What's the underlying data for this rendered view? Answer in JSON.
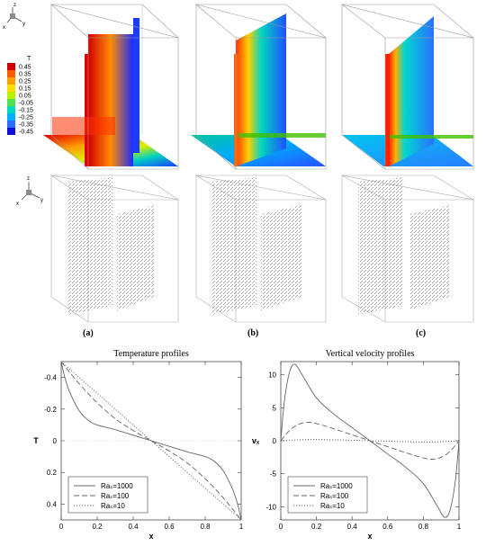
{
  "figure": {
    "panel_labels": [
      "(a)",
      "(b)",
      "(c)"
    ],
    "triad_top": {
      "z": "z",
      "y": "y",
      "x": "x"
    },
    "triad_mid": {
      "z": "z",
      "y": "y",
      "x": "x"
    },
    "colorbar": {
      "title": "T",
      "ticks": [
        "0.45",
        "0.35",
        "0.25",
        "0.15",
        "0.05",
        "-0.05",
        "-0.15",
        "-0.25",
        "-0.35",
        "-0.45"
      ],
      "colors": [
        "#d00000",
        "#ff5a00",
        "#ffa000",
        "#ffe000",
        "#b8f000",
        "#50e050",
        "#00d8c0",
        "#00b0ff",
        "#2a6dff",
        "#1010d8"
      ]
    }
  },
  "chart_data": [
    {
      "type": "line",
      "title": "Temperature profiles",
      "xlabel": "x",
      "ylabel": "T",
      "xlim": [
        0,
        1
      ],
      "ylim": [
        0.5,
        -0.5
      ],
      "xticks": [
        "0",
        "0.2",
        "0.4",
        "0.6",
        "0.8",
        "1"
      ],
      "yticks": [
        "-0.4",
        "-0.2",
        "0",
        "0.2",
        "0.4"
      ],
      "legend": {
        "placement": "bottom-left",
        "entries": [
          "Raₛ=1000",
          "Raₛ=100",
          "Raₛ=10"
        ]
      },
      "series": [
        {
          "name": "Raₛ=1000",
          "style": "solid",
          "x": [
            0,
            0.02,
            0.05,
            0.1,
            0.15,
            0.2,
            0.3,
            0.4,
            0.5,
            0.6,
            0.7,
            0.8,
            0.85,
            0.9,
            0.95,
            0.98,
            1
          ],
          "y": [
            -0.5,
            -0.4,
            -0.3,
            -0.19,
            -0.13,
            -0.1,
            -0.07,
            -0.035,
            0,
            0.035,
            0.07,
            0.1,
            0.13,
            0.19,
            0.3,
            0.4,
            0.5
          ]
        },
        {
          "name": "Raₛ=100",
          "style": "dashed",
          "x": [
            0,
            0.1,
            0.2,
            0.3,
            0.4,
            0.5,
            0.6,
            0.7,
            0.8,
            0.9,
            1
          ],
          "y": [
            -0.5,
            -0.36,
            -0.24,
            -0.14,
            -0.065,
            0,
            0.065,
            0.14,
            0.24,
            0.36,
            0.5
          ]
        },
        {
          "name": "Raₛ=10",
          "style": "dotted",
          "x": [
            0,
            0.1,
            0.2,
            0.3,
            0.4,
            0.5,
            0.6,
            0.7,
            0.8,
            0.9,
            1
          ],
          "y": [
            -0.5,
            -0.4,
            -0.3,
            -0.2,
            -0.1,
            0,
            0.1,
            0.2,
            0.3,
            0.4,
            0.5
          ]
        }
      ]
    },
    {
      "type": "line",
      "title": "Vertical velocity profiles",
      "xlabel": "x",
      "ylabel": "vₓ",
      "xlim": [
        0,
        1
      ],
      "ylim": [
        -12,
        12
      ],
      "xticks": [
        "0",
        "0.2",
        "0.4",
        "0.6",
        "0.8",
        "1"
      ],
      "yticks": [
        "10",
        "5",
        "0",
        "-5",
        "-10"
      ],
      "legend": {
        "placement": "bottom-left",
        "entries": [
          "Raₛ=1000",
          "Raₛ=100",
          "Raₛ=10"
        ]
      },
      "series": [
        {
          "name": "Raₛ=1000",
          "style": "solid",
          "x": [
            0,
            0.02,
            0.05,
            0.08,
            0.12,
            0.2,
            0.3,
            0.4,
            0.5,
            0.6,
            0.7,
            0.8,
            0.88,
            0.92,
            0.95,
            0.98,
            1
          ],
          "y": [
            0,
            6,
            10.5,
            11.6,
            10.0,
            6.5,
            4.0,
            2.0,
            0,
            -2.0,
            -4.0,
            -6.5,
            -10.0,
            -11.6,
            -10.5,
            -6,
            0
          ]
        },
        {
          "name": "Raₛ=100",
          "style": "dashed",
          "x": [
            0,
            0.05,
            0.1,
            0.15,
            0.2,
            0.3,
            0.4,
            0.5,
            0.6,
            0.7,
            0.8,
            0.85,
            0.9,
            0.95,
            1
          ],
          "y": [
            0,
            1.6,
            2.5,
            2.8,
            2.6,
            1.8,
            0.9,
            0,
            -0.9,
            -1.8,
            -2.6,
            -2.8,
            -2.5,
            -1.6,
            0
          ]
        },
        {
          "name": "Raₛ=10",
          "style": "dotted",
          "x": [
            0,
            0.1,
            0.2,
            0.3,
            0.4,
            0.5,
            0.6,
            0.7,
            0.8,
            0.9,
            1
          ],
          "y": [
            0,
            0.15,
            0.2,
            0.15,
            0.08,
            0,
            -0.08,
            -0.15,
            -0.2,
            -0.15,
            0
          ]
        }
      ]
    }
  ]
}
